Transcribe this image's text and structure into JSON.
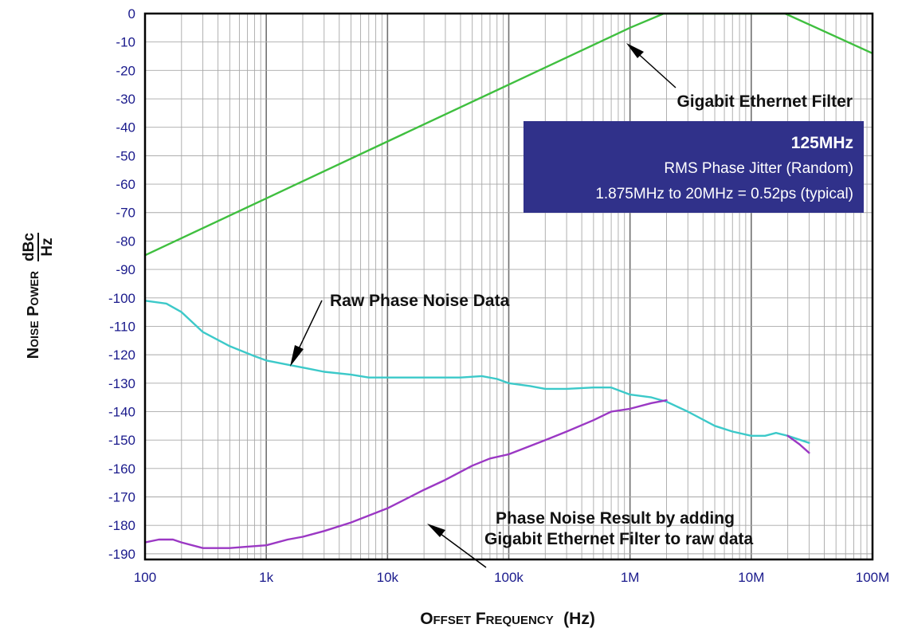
{
  "chart_data": {
    "type": "line",
    "xscale": "log",
    "xlim": [
      100,
      100000000
    ],
    "ylim": [
      -192,
      0
    ],
    "grid": true,
    "xlabel": {
      "main": "Offset Frequency",
      "unit": "(Hz)"
    },
    "ylabel": {
      "main": "Noise Power",
      "unit_num": "dBc",
      "unit_den": "Hz"
    },
    "x_ticks": [
      {
        "value": 100,
        "label": "100"
      },
      {
        "value": 1000,
        "label": "1k"
      },
      {
        "value": 10000,
        "label": "10k"
      },
      {
        "value": 100000,
        "label": "100k"
      },
      {
        "value": 1000000,
        "label": "1M"
      },
      {
        "value": 10000000,
        "label": "10M"
      },
      {
        "value": 100000000,
        "label": "100M"
      }
    ],
    "y_ticks": [
      {
        "value": 0,
        "label": "0"
      },
      {
        "value": -10,
        "label": "-10"
      },
      {
        "value": -20,
        "label": "-20"
      },
      {
        "value": -30,
        "label": "-30"
      },
      {
        "value": -40,
        "label": "-40"
      },
      {
        "value": -50,
        "label": "-50"
      },
      {
        "value": -60,
        "label": "-60"
      },
      {
        "value": -70,
        "label": "-70"
      },
      {
        "value": -80,
        "label": "-80"
      },
      {
        "value": -90,
        "label": "-90"
      },
      {
        "value": -100,
        "label": "-100"
      },
      {
        "value": -110,
        "label": "-110"
      },
      {
        "value": -120,
        "label": "-120"
      },
      {
        "value": -130,
        "label": "-130"
      },
      {
        "value": -140,
        "label": "-140"
      },
      {
        "value": -150,
        "label": "-150"
      },
      {
        "value": -160,
        "label": "-160"
      },
      {
        "value": -170,
        "label": "-170"
      },
      {
        "value": -180,
        "label": "-180"
      },
      {
        "value": -190,
        "label": "-190"
      }
    ],
    "series": [
      {
        "id": "filter",
        "color": "#3fbf3f",
        "points": [
          [
            100,
            -85
          ],
          [
            1000,
            -65
          ],
          [
            10000,
            -45
          ],
          [
            100000,
            -25
          ],
          [
            1000000,
            -5
          ],
          [
            1900000,
            0
          ],
          [
            19000000,
            0
          ],
          [
            100000000,
            -14
          ]
        ]
      },
      {
        "id": "raw",
        "color": "#3cc9c9",
        "points": [
          [
            100,
            -101
          ],
          [
            150,
            -102
          ],
          [
            200,
            -105
          ],
          [
            300,
            -112
          ],
          [
            500,
            -117
          ],
          [
            800,
            -120.5
          ],
          [
            1000,
            -122
          ],
          [
            1500,
            -123.5
          ],
          [
            2000,
            -124.5
          ],
          [
            3000,
            -126
          ],
          [
            5000,
            -127
          ],
          [
            7000,
            -128
          ],
          [
            10000,
            -128
          ],
          [
            20000,
            -128
          ],
          [
            40000,
            -128
          ],
          [
            60000,
            -127.5
          ],
          [
            80000,
            -128.5
          ],
          [
            100000,
            -130
          ],
          [
            150000,
            -131
          ],
          [
            200000,
            -132
          ],
          [
            300000,
            -132
          ],
          [
            500000,
            -131.5
          ],
          [
            700000,
            -131.5
          ],
          [
            1000000,
            -134
          ],
          [
            1500000,
            -135
          ],
          [
            2000000,
            -136.5
          ],
          [
            3000000,
            -140
          ],
          [
            5000000,
            -145
          ],
          [
            7000000,
            -147
          ],
          [
            10000000,
            -148.5
          ],
          [
            13000000,
            -148.5
          ],
          [
            16000000,
            -147.5
          ],
          [
            20000000,
            -148.5
          ],
          [
            30000000,
            -151
          ]
        ]
      },
      {
        "id": "result",
        "color": "#9b38c4",
        "points": [
          [
            100,
            -186
          ],
          [
            130,
            -185
          ],
          [
            170,
            -185
          ],
          [
            200,
            -186
          ],
          [
            300,
            -188
          ],
          [
            500,
            -188
          ],
          [
            700,
            -187.5
          ],
          [
            1000,
            -187
          ],
          [
            1500,
            -185
          ],
          [
            2000,
            -184
          ],
          [
            3000,
            -182
          ],
          [
            5000,
            -179
          ],
          [
            10000,
            -174
          ],
          [
            20000,
            -167.5
          ],
          [
            30000,
            -164
          ],
          [
            50000,
            -159
          ],
          [
            70000,
            -156.5
          ],
          [
            100000,
            -155
          ],
          [
            200000,
            -150
          ],
          [
            300000,
            -147
          ],
          [
            500000,
            -143
          ],
          [
            700000,
            -140
          ],
          [
            1000000,
            -139
          ],
          [
            1500000,
            -137
          ],
          [
            2000000,
            -136
          ]
        ]
      },
      {
        "id": "result-tail",
        "color": "#9b38c4",
        "points": [
          [
            20000000,
            -148.5
          ],
          [
            25000000,
            -151.5
          ],
          [
            30000000,
            -154.5
          ]
        ]
      }
    ],
    "annotations": [
      {
        "id": "gigabit-ethernet-filter",
        "lines": [
          "Gigabit Ethernet Filter"
        ]
      },
      {
        "id": "raw-phase-noise-data",
        "lines": [
          "Raw Phase Noise Data"
        ]
      },
      {
        "id": "phase-noise-result",
        "lines": [
          "Phase Noise Result by adding",
          "Gigabit Ethernet Filter to raw data"
        ]
      }
    ],
    "info_box": {
      "background": "#30318a",
      "title": "125MHz",
      "line1": "RMS Phase Jitter (Random)",
      "line2": "1.875MHz to 20MHz = 0.52ps (typical)"
    }
  }
}
